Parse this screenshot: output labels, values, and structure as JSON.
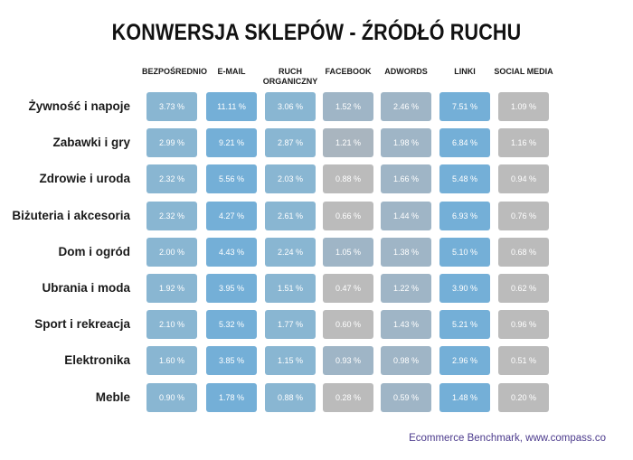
{
  "chart_data": {
    "type": "heatmap",
    "title": "KONWERSJA SKLEPÓW - ŹRÓDŁÓ RUCHU",
    "columns": [
      "BEZPOŚREDNIO",
      "E-MAIL",
      "RUCH ORGANICZNY",
      "FACEBOOK",
      "ADWORDS",
      "LINKI",
      "SOCIAL MEDIA"
    ],
    "rows": [
      {
        "label": "Żywność i napoje",
        "values": [
          "3.73 %",
          "11.11 %",
          "3.06 %",
          "1.52 %",
          "2.46 %",
          "7.51 %",
          "1.09 %"
        ]
      },
      {
        "label": "Zabawki i gry",
        "values": [
          "2.99 %",
          "9.21 %",
          "2.87 %",
          "1.21 %",
          "1.98 %",
          "6.84 %",
          "1.16 %"
        ]
      },
      {
        "label": "Zdrowie i uroda",
        "values": [
          "2.32 %",
          "5.56 %",
          "2.03 %",
          "0.88 %",
          "1.66 %",
          "5.48 %",
          "0.94 %"
        ]
      },
      {
        "label": "Biżuteria i akcesoria",
        "values": [
          "2.32 %",
          "4.27 %",
          "2.61 %",
          "0.66 %",
          "1.44 %",
          "6.93 %",
          "0.76 %"
        ]
      },
      {
        "label": "Dom i ogród",
        "values": [
          "2.00 %",
          "4.43 %",
          "2.24 %",
          "1.05 %",
          "1.38 %",
          "5.10 %",
          "0.68 %"
        ]
      },
      {
        "label": "Ubrania i moda",
        "values": [
          "1.92 %",
          "3.95 %",
          "1.51 %",
          "0.47 %",
          "1.22 %",
          "3.90 %",
          "0.62 %"
        ]
      },
      {
        "label": "Sport i rekreacja",
        "values": [
          "2.10 %",
          "5.32 %",
          "1.77 %",
          "0.60 %",
          "1.43 %",
          "5.21 %",
          "0.96 %"
        ]
      },
      {
        "label": "Elektronika",
        "values": [
          "1.60 %",
          "3.85 %",
          "1.15 %",
          "0.93 %",
          "0.98 %",
          "2.96 %",
          "0.51 %"
        ]
      },
      {
        "label": "Meble",
        "values": [
          "0.90 %",
          "1.78 %",
          "0.88 %",
          "0.28 %",
          "0.59 %",
          "1.48 %",
          "0.20 %"
        ]
      }
    ],
    "colors": {
      "strong": "#74afd7",
      "medium": "#89b6d2",
      "light": "#9fb5c6",
      "pale": "#a9b5bf",
      "grey": "#bbbbbb"
    },
    "cell_colors": [
      [
        "medium",
        "strong",
        "medium",
        "light",
        "light",
        "strong",
        "grey"
      ],
      [
        "medium",
        "strong",
        "medium",
        "pale",
        "light",
        "strong",
        "grey"
      ],
      [
        "medium",
        "strong",
        "medium",
        "grey",
        "light",
        "strong",
        "grey"
      ],
      [
        "medium",
        "strong",
        "medium",
        "grey",
        "light",
        "strong",
        "grey"
      ],
      [
        "medium",
        "strong",
        "medium",
        "light",
        "light",
        "strong",
        "grey"
      ],
      [
        "medium",
        "strong",
        "medium",
        "grey",
        "light",
        "strong",
        "grey"
      ],
      [
        "medium",
        "strong",
        "medium",
        "grey",
        "light",
        "strong",
        "grey"
      ],
      [
        "medium",
        "strong",
        "medium",
        "light",
        "light",
        "strong",
        "grey"
      ],
      [
        "medium",
        "strong",
        "medium",
        "grey",
        "light",
        "strong",
        "grey"
      ]
    ]
  },
  "source": "Ecommerce Benchmark, www.compass.co"
}
